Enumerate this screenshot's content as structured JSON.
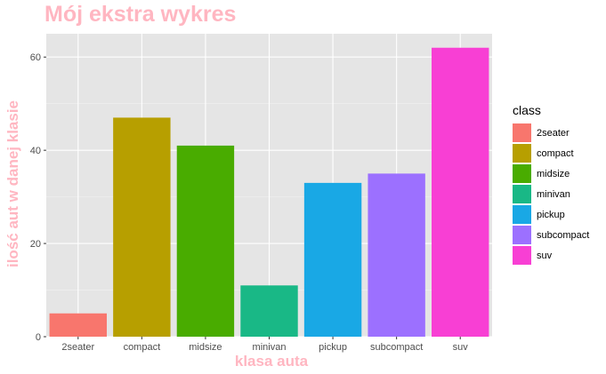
{
  "chart_data": {
    "type": "bar",
    "title": "Mój ekstra wykres",
    "xlabel": "klasa auta",
    "ylabel": "ilość aut w danej klasie",
    "categories": [
      "2seater",
      "compact",
      "midsize",
      "minivan",
      "pickup",
      "subcompact",
      "suv"
    ],
    "values": [
      5,
      47,
      41,
      11,
      33,
      35,
      62
    ],
    "colors": [
      "#F8766D",
      "#B79F00",
      "#49AC00",
      "#19B886",
      "#19A8E5",
      "#9C70FF",
      "#F83FD4"
    ],
    "ylim": [
      0,
      65
    ],
    "yticks": [
      0,
      20,
      40,
      60
    ],
    "grid": true,
    "legend": {
      "title": "class",
      "position": "right",
      "items": [
        "2seater",
        "compact",
        "midsize",
        "minivan",
        "pickup",
        "subcompact",
        "suv"
      ]
    }
  }
}
